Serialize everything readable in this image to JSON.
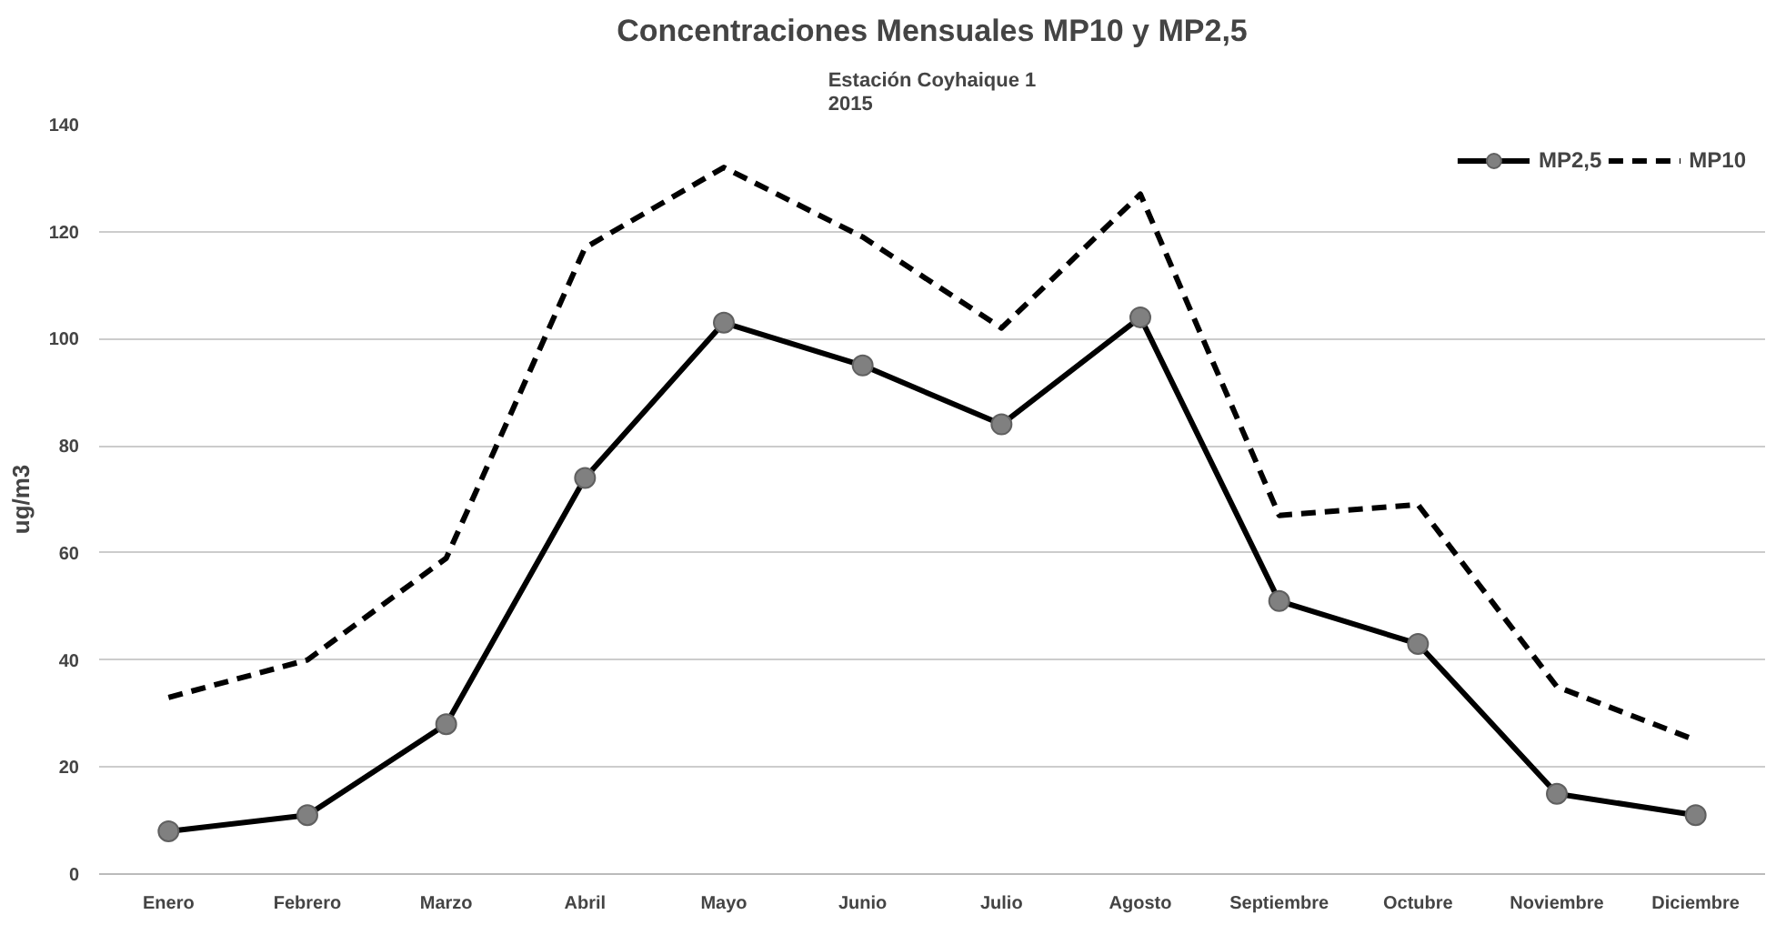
{
  "chart_data": {
    "type": "line",
    "title": "Concentraciones Mensuales MP10 y MP2,5",
    "subtitle": "Estación Coyhaique 1\n2015",
    "ylabel": "ug/m3",
    "categories": [
      "Enero",
      "Febrero",
      "Marzo",
      "Abril",
      "Mayo",
      "Junio",
      "Julio",
      "Agosto",
      "Septiembre",
      "Octubre",
      "Noviembre",
      "Diciembre"
    ],
    "series": [
      {
        "name": "MP2,5",
        "color": "#000000",
        "marker": "circle",
        "line_style": "solid",
        "values": [
          8,
          11,
          28,
          74,
          103,
          95,
          84,
          104,
          51,
          43,
          15,
          11
        ]
      },
      {
        "name": "MP10",
        "color": "#000000",
        "marker": "none",
        "line_style": "dashed",
        "values": [
          33,
          40,
          59,
          117,
          132,
          119,
          102,
          127,
          67,
          69,
          35,
          25
        ]
      }
    ],
    "ylim": [
      0,
      140
    ],
    "yticks": [
      0,
      20,
      40,
      60,
      80,
      100,
      120,
      140
    ],
    "grid": "y",
    "legend": "top right"
  }
}
